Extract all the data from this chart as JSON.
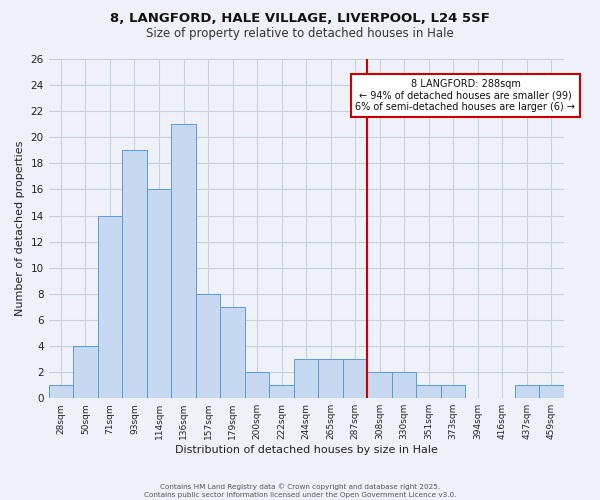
{
  "title1": "8, LANGFORD, HALE VILLAGE, LIVERPOOL, L24 5SF",
  "title2": "Size of property relative to detached houses in Hale",
  "xlabel": "Distribution of detached houses by size in Hale",
  "ylabel": "Number of detached properties",
  "categories": [
    "28sqm",
    "50sqm",
    "71sqm",
    "93sqm",
    "114sqm",
    "136sqm",
    "157sqm",
    "179sqm",
    "200sqm",
    "222sqm",
    "244sqm",
    "265sqm",
    "287sqm",
    "308sqm",
    "330sqm",
    "351sqm",
    "373sqm",
    "394sqm",
    "416sqm",
    "437sqm",
    "459sqm"
  ],
  "values": [
    1,
    4,
    14,
    19,
    16,
    21,
    8,
    7,
    2,
    1,
    3,
    3,
    3,
    2,
    2,
    1,
    1,
    0,
    0,
    1,
    1
  ],
  "bar_color": "#c6d9f0",
  "bar_edge_color": "#5b9bd5",
  "grid_color": "#c8d0dc",
  "background_color": "#eef2f8",
  "vline_color": "#cc0000",
  "annotation_text": "8 LANGFORD: 288sqm\n← 94% of detached houses are smaller (99)\n6% of semi-detached houses are larger (6) →",
  "annotation_box_color": "#cc0000",
  "ylim": [
    0,
    26
  ],
  "yticks": [
    0,
    2,
    4,
    6,
    8,
    10,
    12,
    14,
    16,
    18,
    20,
    22,
    24,
    26
  ],
  "footer": "Contains HM Land Registry data © Crown copyright and database right 2025.\nContains public sector information licensed under the Open Government Licence v3.0."
}
